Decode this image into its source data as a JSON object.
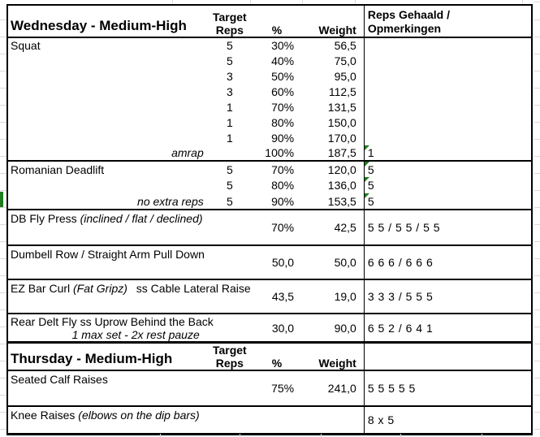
{
  "colors": {
    "triangle_green": "#1f7c1f",
    "gridline": "#d9d9d9",
    "border": "#000000"
  },
  "wed": {
    "title": "Wednesday - Medium-High",
    "col_target_1": "Target",
    "col_target_2": "Reps",
    "col_pct": "%",
    "col_weight": "Weight",
    "col_gehaald_1": "Reps Gehaald /",
    "col_gehaald_2": "Opmerkingen",
    "squat": {
      "name": "Squat",
      "sets": [
        {
          "target": "5",
          "pct": "30%",
          "weight": "56,5"
        },
        {
          "target": "5",
          "pct": "40%",
          "weight": "75,0"
        },
        {
          "target": "3",
          "pct": "50%",
          "weight": "95,0"
        },
        {
          "target": "3",
          "pct": "60%",
          "weight": "112,5"
        },
        {
          "target": "1",
          "pct": "70%",
          "weight": "131,5"
        },
        {
          "target": "1",
          "pct": "80%",
          "weight": "150,0"
        },
        {
          "target": "1",
          "pct": "90%",
          "weight": "170,0"
        }
      ],
      "amrap_label": "amrap",
      "amrap_pct": "100%",
      "amrap_weight": "187,5",
      "amrap_gehaald": "1"
    },
    "romanian": {
      "name": "Romanian Deadlift",
      "sets": [
        {
          "note": "",
          "target": "5",
          "pct": "70%",
          "weight": "120,0",
          "gehaald": "5"
        },
        {
          "note": "",
          "target": "5",
          "pct": "80%",
          "weight": "136,0",
          "gehaald": "5"
        },
        {
          "note": "no extra reps",
          "target": "5",
          "pct": "90%",
          "weight": "153,5",
          "gehaald": "5"
        }
      ]
    },
    "db_fly": {
      "name": "DB Fly Press",
      "note": "(inclined / flat / declined)",
      "pct": "70%",
      "weight": "42,5",
      "gehaald": "5 5 / 5 5 / 5 5"
    },
    "dumbell": {
      "name": "Dumbell Row / Straight Arm Pull Down",
      "pct": "50,0",
      "weight": "50,0",
      "gehaald": "6 6 6 / 6 6 6"
    },
    "ez": {
      "name": "EZ Bar Curl",
      "note": "(Fat Gripz)",
      "name2": "ss Cable Lateral Raise",
      "pct": "43,5",
      "weight": "19,0",
      "gehaald": "3 3 3 / 5 5 5"
    },
    "rear": {
      "name": "Rear Delt Fly ss Uprow Behind the Back",
      "note": "1 max set - 2x rest pauze",
      "pct": "30,0",
      "weight": "90,0",
      "gehaald": "6 5 2 / 6 4 1"
    }
  },
  "thu": {
    "title": "Thursday - Medium-High",
    "col_target_1": "Target",
    "col_target_2": "Reps",
    "col_pct": "%",
    "col_weight": "Weight",
    "calf": {
      "name": "Seated Calf Raises",
      "pct": "75%",
      "weight": "241,0",
      "gehaald": "5 5 5 5 5"
    },
    "knee": {
      "name": "Knee Raises",
      "note": "(elbows on the dip bars)",
      "gehaald": "8 x 5"
    }
  }
}
